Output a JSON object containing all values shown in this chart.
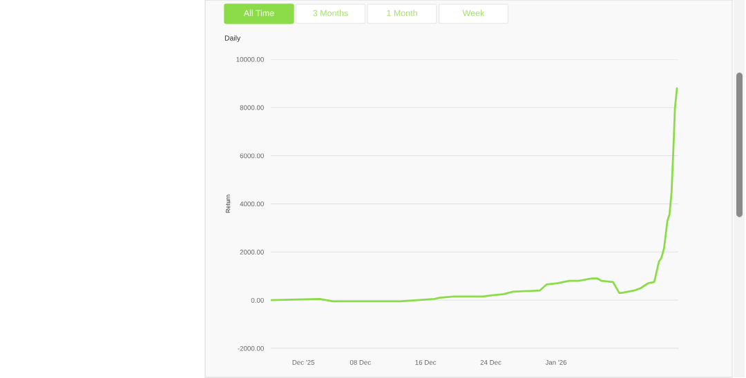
{
  "chart_data": {
    "type": "line",
    "title": "Daily",
    "ylabel": "Return",
    "annotations": [
      "All Time",
      "3 Months",
      "1 Month",
      "Week"
    ],
    "x": [
      "2025-11-27T00:00",
      "2025-12-03T00:00",
      "2025-12-04T15:00",
      "2025-12-08T15:00",
      "2025-12-12T21:00",
      "2025-12-17T02:00",
      "2025-12-17T17:00",
      "2025-12-19T10:00",
      "2025-12-19T22:00",
      "2025-12-23T00:00",
      "2025-12-24T03:00",
      "2025-12-25T14:00",
      "2025-12-26T17:00",
      "2025-12-30T00:00",
      "2025-12-30T20:00",
      "2026-01-01T04:00",
      "2026-01-02T15:00",
      "2026-01-03T19:00",
      "2026-01-05T08:00",
      "2026-01-06T02:00",
      "2026-01-06T14:00",
      "2026-01-08T00:00",
      "2026-01-08T18:00",
      "2026-01-09T02:00",
      "2026-01-09T20:00",
      "2026-01-10T14:00",
      "2026-01-11T09:00",
      "2026-01-12T07:00",
      "2026-01-13T01:00",
      "2026-01-13T15:00",
      "2026-01-13T22:00",
      "2026-01-14T06:00",
      "2026-01-14T16:00",
      "2026-01-14T22:00",
      "2026-01-15T04:00",
      "2026-01-15T10:00",
      "2026-01-15T14:00",
      "2026-01-15T20:00"
    ],
    "series": [
      {
        "color": "#8cdc4a",
        "values": [
          0,
          50,
          -50,
          -50,
          -50,
          50,
          100,
          150,
          150,
          150,
          200,
          250,
          350,
          400,
          650,
          700,
          800,
          800,
          900,
          900,
          800,
          750,
          300,
          300,
          350,
          400,
          500,
          700,
          750,
          1600,
          1750,
          2150,
          3300,
          3550,
          4450,
          6450,
          7950,
          8800
        ]
      }
    ],
    "xlim": [
      "2025-11-27T00:00",
      "2026-01-16T00:00"
    ],
    "xticks": [
      {
        "value": "2025-12-01",
        "label": "Dec '25"
      },
      {
        "value": "2025-12-08",
        "label": "08 Dec"
      },
      {
        "value": "2025-12-16",
        "label": "16 Dec"
      },
      {
        "value": "2025-12-24",
        "label": "24 Dec"
      },
      {
        "value": "2026-01-01",
        "label": "Jan '26"
      }
    ],
    "ylim": [
      -2000,
      10000
    ],
    "yticks": [
      {
        "value": -2000,
        "label": "-2000.00"
      },
      {
        "value": 0,
        "label": "0.00"
      },
      {
        "value": 2000,
        "label": "2000.00"
      },
      {
        "value": 4000,
        "label": "4000.00"
      },
      {
        "value": 6000,
        "label": "6000.00"
      },
      {
        "value": 8000,
        "label": "8000.00"
      },
      {
        "value": 10000,
        "label": "10000.00"
      }
    ],
    "grid": "y"
  }
}
